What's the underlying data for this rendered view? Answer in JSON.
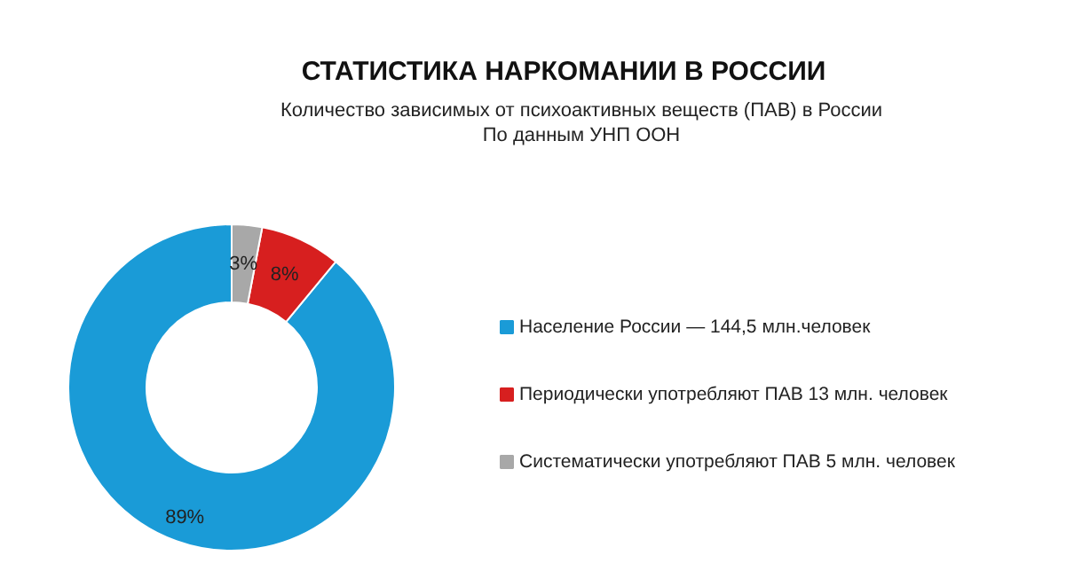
{
  "chart_data": {
    "type": "donut",
    "title": "СТАТИСТИКА НАРКОМАНИИ В РОССИИ",
    "subtitle": "Количество зависимых от психоактивных веществ (ПАВ) в России\nПо данным УНП ООН",
    "categories": [
      "Население России — 144,5  млн.человек",
      "Периодически употребляют ПАВ 13 млн. человек",
      "Систематически употребляют ПАВ 5 млн. человек"
    ],
    "values": [
      89,
      8,
      3
    ],
    "colors": [
      "#1a9bd7",
      "#d71f1f",
      "#a8a8a8"
    ],
    "value_labels": [
      "89%",
      "8%",
      "3%"
    ],
    "legend": "right"
  }
}
